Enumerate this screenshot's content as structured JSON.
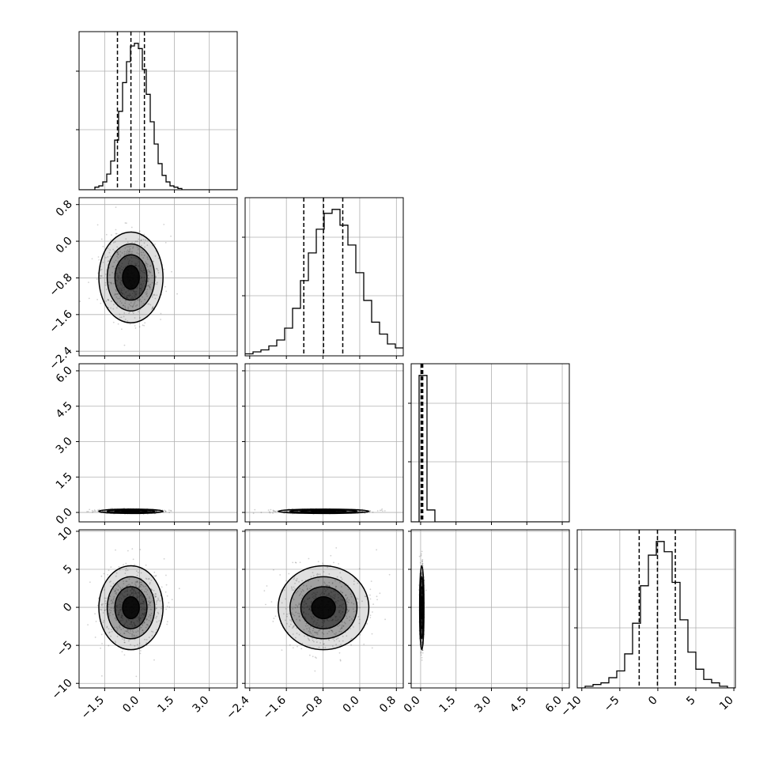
{
  "chart_data": {
    "type": "corner",
    "parameters": 4,
    "colors": {
      "line": "#000000",
      "grid": "#b0b0b0",
      "frame": "#000000",
      "density": "#000000"
    },
    "grid": true,
    "ranges": [
      [
        -2.6,
        4.2
      ],
      [
        -2.5,
        0.95
      ],
      [
        -0.4,
        6.3
      ],
      [
        -10.6,
        10.2
      ]
    ],
    "ticks": [
      {
        "values": [
          -1.5,
          0.0,
          1.5,
          3.0
        ],
        "labels": [
          "−1.5",
          "0.0",
          "1.5",
          "3.0"
        ]
      },
      {
        "values": [
          -2.4,
          -1.6,
          -0.8,
          0.0,
          0.8
        ],
        "labels": [
          "−2.4",
          "−1.6",
          "−0.8",
          "0.0",
          "0.8"
        ]
      },
      {
        "values": [
          0.0,
          1.5,
          3.0,
          4.5,
          6.0
        ],
        "labels": [
          "0.0",
          "1.5",
          "3.0",
          "4.5",
          "6.0"
        ]
      },
      {
        "values": [
          -10,
          -5,
          0,
          5,
          10
        ],
        "labels": [
          "−10",
          "−5",
          "0",
          "5",
          "10"
        ]
      }
    ],
    "quantiles": [
      [
        -0.95,
        -0.37,
        0.21
      ],
      [
        -1.22,
        -0.79,
        -0.37
      ],
      [
        0.02,
        0.05,
        0.09
      ],
      [
        -2.45,
        -0.05,
        2.3
      ]
    ],
    "histograms": [
      {
        "bin_start": -2.6,
        "bin_width": 0.17,
        "counts": [
          0,
          0,
          0,
          0,
          2,
          3,
          6,
          12,
          22,
          38,
          60,
          82,
          98,
          110,
          112,
          108,
          92,
          73,
          52,
          35,
          20,
          11,
          6,
          3,
          2,
          1,
          0,
          0,
          0,
          0,
          0,
          0,
          0,
          0,
          0,
          0,
          0,
          0,
          0,
          0
        ]
      },
      {
        "bin_start": -2.5,
        "bin_width": 0.1725,
        "counts": [
          1,
          2,
          3,
          5,
          8,
          14,
          24,
          38,
          52,
          64,
          72,
          74,
          66,
          56,
          42,
          28,
          17,
          11,
          6,
          4
        ]
      },
      {
        "bin_start": -0.4,
        "bin_width": 0.335,
        "counts": [
          0,
          172,
          14,
          0,
          0,
          0,
          0,
          0,
          0,
          0,
          0,
          0,
          0,
          0,
          0,
          0,
          0,
          0,
          0,
          0
        ]
      },
      {
        "bin_start": -10.6,
        "bin_width": 1.04,
        "counts": [
          0,
          1,
          2,
          3,
          6,
          10,
          20,
          38,
          60,
          78,
          86,
          80,
          62,
          40,
          21,
          11,
          5,
          3,
          1,
          0
        ]
      }
    ],
    "contour_centers": [
      [
        {
          "x": -0.37,
          "y": -0.79,
          "sx": 0.6,
          "sy": 0.43
        }
      ],
      [
        {
          "x": -0.37,
          "y": 0.05,
          "sx": 0.6,
          "sy": 0.04
        },
        {
          "x": -0.79,
          "y": 0.05,
          "sx": 0.43,
          "sy": 0.04
        }
      ],
      [
        {
          "x": -0.37,
          "y": -0.05,
          "sx": 0.6,
          "sy": 2.4
        },
        {
          "x": -0.79,
          "y": -0.05,
          "sx": 0.43,
          "sy": 2.4
        },
        {
          "x": 0.05,
          "y": -0.05,
          "sx": 0.04,
          "sy": 2.4
        }
      ]
    ]
  }
}
